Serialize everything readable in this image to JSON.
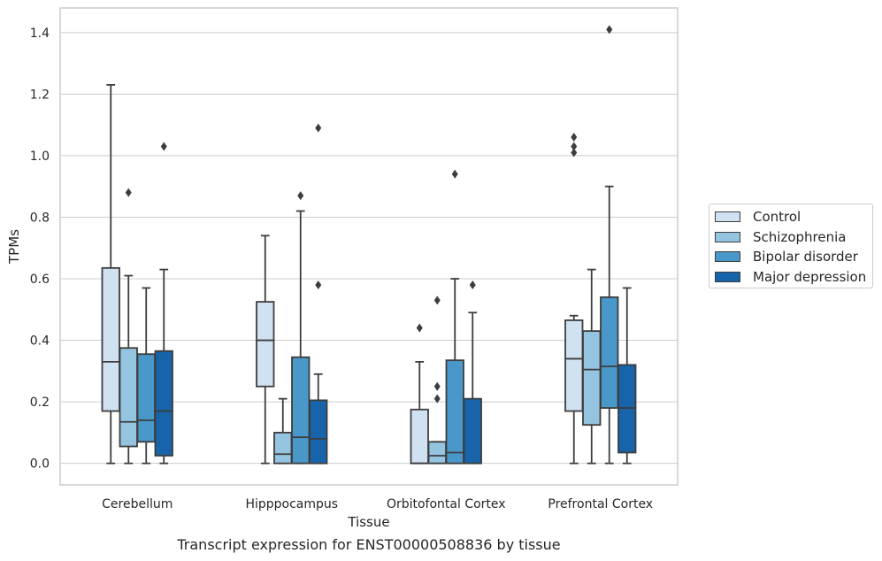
{
  "caption": "Transcript expression for ENST00000508836 by tissue",
  "chart_data": {
    "type": "boxplot",
    "xlabel": "Tissue",
    "ylabel": "TPMs",
    "ylim": [
      -0.07,
      1.48
    ],
    "yticks": [
      0.0,
      0.2,
      0.4,
      0.6,
      0.8,
      1.0,
      1.2,
      1.4
    ],
    "grid": "horizontal",
    "legend_position": "right",
    "categories": [
      "Cerebellum",
      "Hipppocampus",
      "Orbitofontal Cortex",
      "Prefrontal Cortex"
    ],
    "series": [
      {
        "name": "Control",
        "color": "#d0e1f2",
        "boxes": [
          {
            "min": 0.0,
            "q1": 0.17,
            "median": 0.33,
            "q3": 0.635,
            "max": 1.23,
            "outliers": []
          },
          {
            "min": 0.0,
            "q1": 0.25,
            "median": 0.4,
            "q3": 0.525,
            "max": 0.74,
            "outliers": []
          },
          {
            "min": 0.0,
            "q1": 0.0,
            "median": 0.0,
            "q3": 0.175,
            "max": 0.33,
            "outliers": [
              0.44
            ]
          },
          {
            "min": 0.0,
            "q1": 0.17,
            "median": 0.34,
            "q3": 0.465,
            "max": 0.48,
            "outliers": [
              1.01,
              1.03,
              1.06
            ]
          }
        ]
      },
      {
        "name": "Schizophrenia",
        "color": "#94c4df",
        "boxes": [
          {
            "min": 0.0,
            "q1": 0.055,
            "median": 0.135,
            "q3": 0.375,
            "max": 0.61,
            "outliers": [
              0.88
            ]
          },
          {
            "min": 0.0,
            "q1": 0.0,
            "median": 0.03,
            "q3": 0.1,
            "max": 0.21,
            "outliers": []
          },
          {
            "min": 0.0,
            "q1": 0.0,
            "median": 0.025,
            "q3": 0.07,
            "max": 0.07,
            "outliers": [
              0.21,
              0.25,
              0.53
            ]
          },
          {
            "min": 0.0,
            "q1": 0.125,
            "median": 0.305,
            "q3": 0.43,
            "max": 0.63,
            "outliers": []
          }
        ]
      },
      {
        "name": "Bipolar disorder",
        "color": "#4a98c9",
        "boxes": [
          {
            "min": 0.0,
            "q1": 0.07,
            "median": 0.14,
            "q3": 0.355,
            "max": 0.57,
            "outliers": []
          },
          {
            "min": 0.0,
            "q1": 0.0,
            "median": 0.085,
            "q3": 0.345,
            "max": 0.82,
            "outliers": [
              0.87
            ]
          },
          {
            "min": 0.0,
            "q1": 0.0,
            "median": 0.035,
            "q3": 0.335,
            "max": 0.6,
            "outliers": [
              0.94
            ]
          },
          {
            "min": 0.0,
            "q1": 0.18,
            "median": 0.315,
            "q3": 0.54,
            "max": 0.9,
            "outliers": [
              1.41
            ]
          }
        ]
      },
      {
        "name": "Major depression",
        "color": "#1764ab",
        "boxes": [
          {
            "min": 0.0,
            "q1": 0.025,
            "median": 0.17,
            "q3": 0.365,
            "max": 0.63,
            "outliers": [
              1.03
            ]
          },
          {
            "min": 0.0,
            "q1": 0.0,
            "median": 0.08,
            "q3": 0.205,
            "max": 0.29,
            "outliers": [
              0.58,
              1.09
            ]
          },
          {
            "min": 0.0,
            "q1": 0.0,
            "median": 0.0,
            "q3": 0.21,
            "max": 0.49,
            "outliers": [
              0.58
            ]
          },
          {
            "min": 0.0,
            "q1": 0.035,
            "median": 0.18,
            "q3": 0.32,
            "max": 0.57,
            "outliers": []
          }
        ]
      }
    ]
  }
}
